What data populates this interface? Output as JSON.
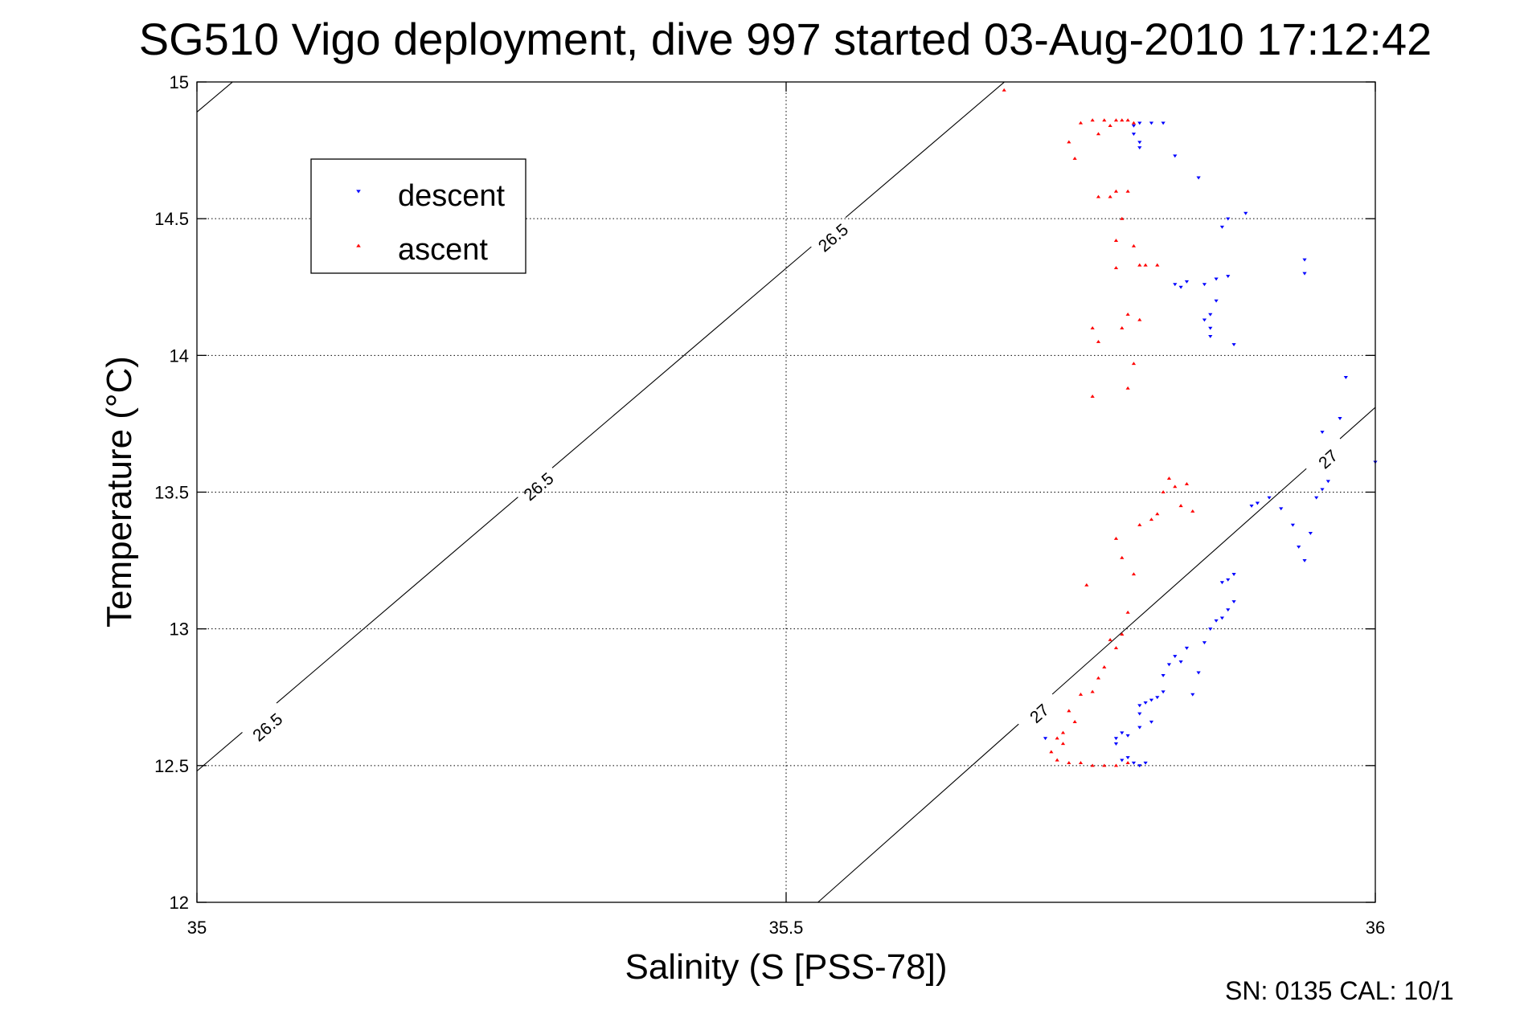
{
  "chart_data": {
    "type": "scatter",
    "title": "SG510 Vigo deployment, dive 997 started 03-Aug-2010 17:12:42",
    "xlabel": "Salinity (S [PSS-78])",
    "ylabel": "Temperature (°C)",
    "xlim": [
      35,
      36
    ],
    "ylim": [
      12,
      15
    ],
    "xticks": [
      35,
      35.5,
      36
    ],
    "xtick_labels": [
      "35",
      "35.5",
      "36"
    ],
    "yticks": [
      12,
      12.5,
      13,
      13.5,
      14,
      14.5,
      15
    ],
    "ytick_labels": [
      "12",
      "12.5",
      "13",
      "13.5",
      "14",
      "14.5",
      "15"
    ],
    "grid": true,
    "legend_position": "top-left",
    "contours": [
      {
        "level_label": "26.5",
        "points": [
          [
            35,
            14.89
          ],
          [
            35.03,
            14.999
          ]
        ],
        "labels": [],
        "color": "#000000"
      },
      {
        "level_label": "26.5",
        "points": [
          [
            35,
            12.48
          ],
          [
            35.685,
            14.999
          ]
        ],
        "labels": [
          [
            35.06,
            12.64
          ],
          [
            35.29,
            13.52
          ],
          [
            35.54,
            14.43
          ]
        ],
        "color": "#000000"
      },
      {
        "level_label": "27",
        "points": [
          [
            35.527,
            12.0
          ],
          [
            36,
            13.81
          ]
        ],
        "labels": [
          [
            35.715,
            12.69
          ],
          [
            35.96,
            13.62
          ]
        ],
        "color": "#000000"
      }
    ],
    "series": [
      {
        "name": "descent",
        "color": "#0000ff",
        "marker": "triangle-down",
        "points": [
          [
            35.72,
            12.6
          ],
          [
            35.78,
            12.6
          ],
          [
            35.78,
            12.58
          ],
          [
            35.785,
            12.62
          ],
          [
            35.79,
            12.61
          ],
          [
            35.8,
            12.64
          ],
          [
            35.8,
            12.72
          ],
          [
            35.805,
            12.73
          ],
          [
            35.81,
            12.74
          ],
          [
            35.815,
            12.75
          ],
          [
            35.8,
            12.69
          ],
          [
            35.79,
            12.53
          ],
          [
            35.795,
            12.51
          ],
          [
            35.8,
            12.5
          ],
          [
            35.805,
            12.51
          ],
          [
            35.785,
            12.52
          ],
          [
            35.81,
            12.66
          ],
          [
            35.82,
            12.77
          ],
          [
            35.82,
            12.83
          ],
          [
            35.825,
            12.87
          ],
          [
            35.83,
            12.9
          ],
          [
            35.835,
            12.88
          ],
          [
            35.84,
            12.93
          ],
          [
            35.845,
            12.76
          ],
          [
            35.85,
            12.84
          ],
          [
            35.855,
            12.95
          ],
          [
            35.86,
            13.0
          ],
          [
            35.865,
            13.03
          ],
          [
            35.87,
            13.04
          ],
          [
            35.875,
            13.07
          ],
          [
            35.88,
            13.1
          ],
          [
            35.87,
            13.17
          ],
          [
            35.875,
            13.18
          ],
          [
            35.88,
            13.2
          ],
          [
            35.895,
            13.45
          ],
          [
            35.9,
            13.46
          ],
          [
            35.91,
            13.48
          ],
          [
            35.92,
            13.44
          ],
          [
            35.93,
            13.38
          ],
          [
            35.935,
            13.3
          ],
          [
            35.94,
            13.25
          ],
          [
            35.945,
            13.35
          ],
          [
            35.95,
            13.48
          ],
          [
            35.955,
            13.51
          ],
          [
            35.96,
            13.54
          ],
          [
            35.955,
            13.72
          ],
          [
            35.97,
            13.77
          ],
          [
            35.975,
            13.92
          ],
          [
            36.0,
            13.61
          ],
          [
            35.94,
            14.35
          ],
          [
            35.94,
            14.3
          ],
          [
            35.89,
            14.52
          ],
          [
            35.875,
            14.5
          ],
          [
            35.87,
            14.47
          ],
          [
            35.875,
            14.29
          ],
          [
            35.865,
            14.28
          ],
          [
            35.855,
            14.26
          ],
          [
            35.84,
            14.27
          ],
          [
            35.835,
            14.25
          ],
          [
            35.83,
            14.26
          ],
          [
            35.865,
            14.2
          ],
          [
            35.86,
            14.15
          ],
          [
            35.855,
            14.13
          ],
          [
            35.86,
            14.1
          ],
          [
            35.86,
            14.07
          ],
          [
            35.88,
            14.04
          ],
          [
            35.85,
            14.65
          ],
          [
            35.83,
            14.73
          ],
          [
            35.8,
            14.78
          ],
          [
            35.8,
            14.76
          ],
          [
            35.795,
            14.81
          ],
          [
            35.795,
            14.84
          ],
          [
            35.8,
            14.85
          ],
          [
            35.81,
            14.85
          ],
          [
            35.82,
            14.85
          ]
        ]
      },
      {
        "name": "ascent",
        "color": "#ff0000",
        "marker": "triangle-up",
        "points": [
          [
            35.685,
            14.97
          ],
          [
            35.74,
            14.78
          ],
          [
            35.745,
            14.72
          ],
          [
            35.75,
            14.85
          ],
          [
            35.76,
            14.86
          ],
          [
            35.765,
            14.81
          ],
          [
            35.77,
            14.86
          ],
          [
            35.775,
            14.84
          ],
          [
            35.78,
            14.86
          ],
          [
            35.785,
            14.86
          ],
          [
            35.79,
            14.86
          ],
          [
            35.795,
            14.85
          ],
          [
            35.765,
            14.58
          ],
          [
            35.775,
            14.58
          ],
          [
            35.78,
            14.6
          ],
          [
            35.79,
            14.6
          ],
          [
            35.785,
            14.5
          ],
          [
            35.78,
            14.42
          ],
          [
            35.795,
            14.4
          ],
          [
            35.8,
            14.33
          ],
          [
            35.805,
            14.33
          ],
          [
            35.815,
            14.33
          ],
          [
            35.78,
            14.32
          ],
          [
            35.785,
            14.1
          ],
          [
            35.79,
            14.15
          ],
          [
            35.8,
            14.13
          ],
          [
            35.76,
            14.1
          ],
          [
            35.765,
            14.05
          ],
          [
            35.795,
            13.97
          ],
          [
            35.76,
            13.85
          ],
          [
            35.79,
            13.88
          ],
          [
            35.82,
            13.5
          ],
          [
            35.83,
            13.52
          ],
          [
            35.84,
            13.53
          ],
          [
            35.845,
            13.43
          ],
          [
            35.825,
            13.55
          ],
          [
            35.835,
            13.45
          ],
          [
            35.815,
            13.42
          ],
          [
            35.8,
            13.38
          ],
          [
            35.81,
            13.4
          ],
          [
            35.78,
            13.33
          ],
          [
            35.785,
            13.26
          ],
          [
            35.795,
            13.2
          ],
          [
            35.755,
            13.16
          ],
          [
            35.79,
            13.06
          ],
          [
            35.785,
            12.98
          ],
          [
            35.775,
            12.96
          ],
          [
            35.78,
            12.93
          ],
          [
            35.77,
            12.86
          ],
          [
            35.765,
            12.82
          ],
          [
            35.75,
            12.76
          ],
          [
            35.76,
            12.77
          ],
          [
            35.74,
            12.7
          ],
          [
            35.745,
            12.66
          ],
          [
            35.735,
            12.62
          ],
          [
            35.73,
            12.6
          ],
          [
            35.735,
            12.58
          ],
          [
            35.725,
            12.55
          ],
          [
            35.73,
            12.52
          ],
          [
            35.74,
            12.51
          ],
          [
            35.75,
            12.51
          ],
          [
            35.76,
            12.5
          ],
          [
            35.77,
            12.5
          ],
          [
            35.78,
            12.5
          ],
          [
            35.79,
            12.51
          ]
        ]
      }
    ],
    "annotations": [
      "SN: 0135  CAL: 10/1"
    ]
  }
}
